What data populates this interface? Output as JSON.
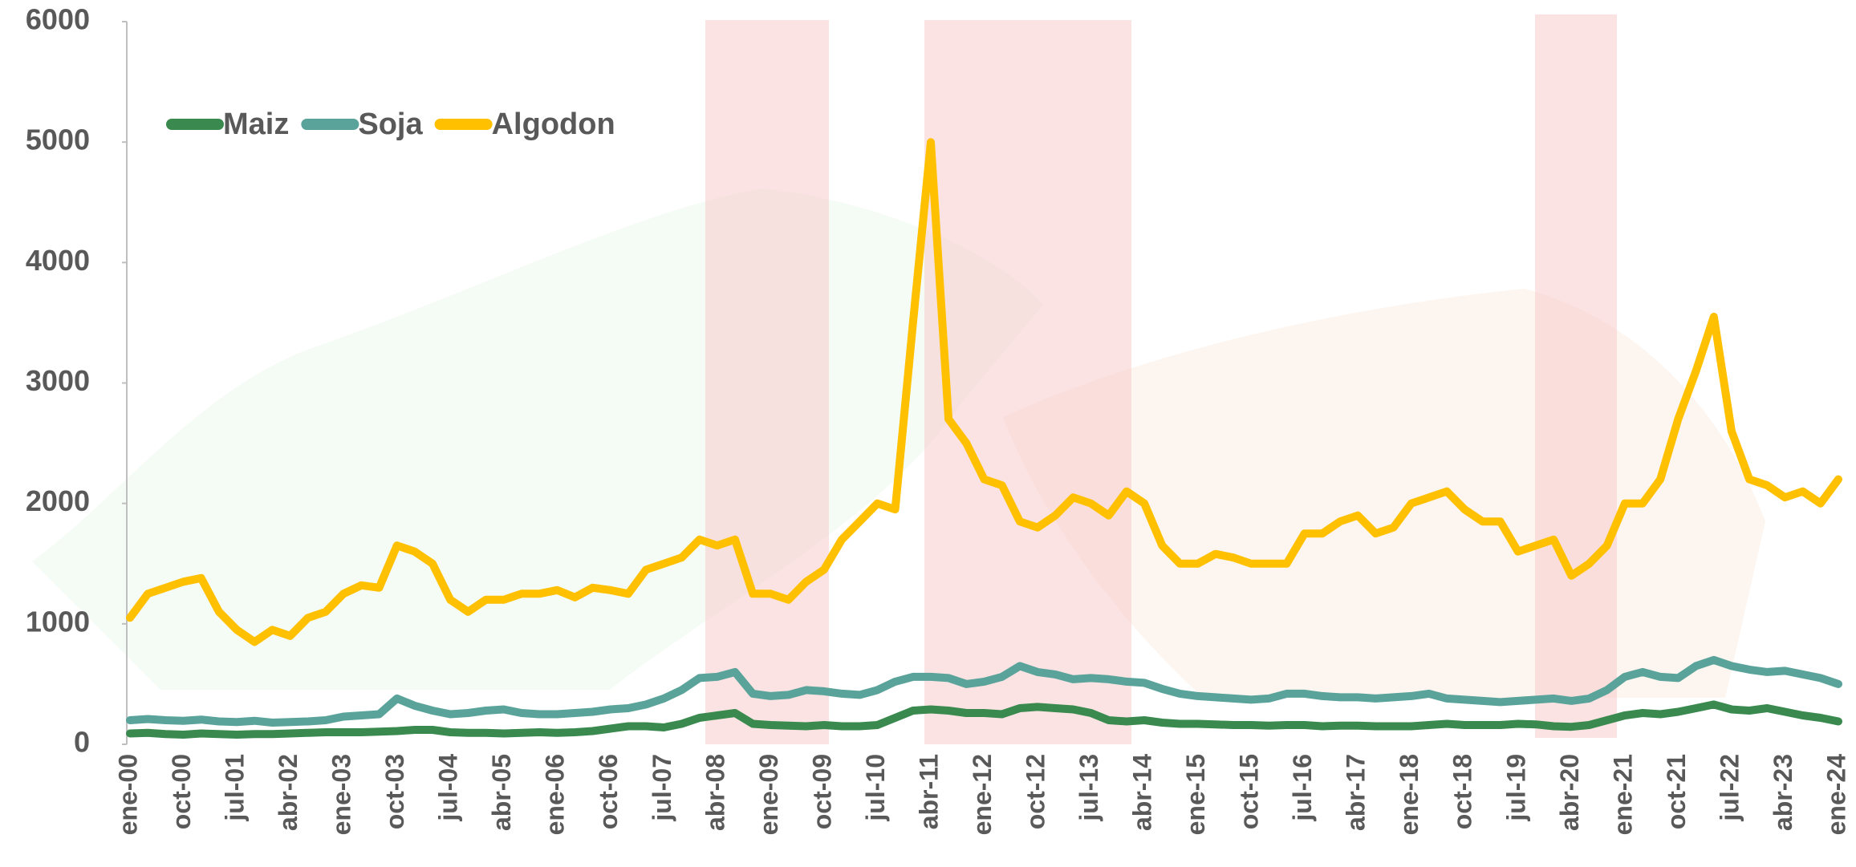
{
  "chart_data": {
    "type": "line",
    "categories": [
      "ene-00",
      null,
      null,
      "oct-00",
      null,
      null,
      "jul-01",
      null,
      null,
      "abr-02",
      null,
      null,
      "ene-03",
      null,
      null,
      "oct-03",
      null,
      null,
      "jul-04",
      null,
      null,
      "abr-05",
      null,
      null,
      "ene-06",
      null,
      null,
      "oct-06",
      null,
      null,
      "jul-07",
      null,
      null,
      "abr-08",
      null,
      null,
      "ene-09",
      null,
      null,
      "oct-09",
      null,
      null,
      "jul-10",
      null,
      null,
      "abr-11",
      null,
      null,
      "ene-12",
      null,
      null,
      "oct-12",
      null,
      null,
      "jul-13",
      null,
      null,
      "abr-14",
      null,
      null,
      "ene-15",
      null,
      null,
      "oct-15",
      null,
      null,
      "jul-16",
      null,
      null,
      "abr-17",
      null,
      null,
      "ene-18",
      null,
      null,
      "oct-18",
      null,
      null,
      "jul-19",
      null,
      null,
      "abr-20",
      null,
      null,
      "ene-21",
      null,
      null,
      "oct-21",
      null,
      null,
      "jul-22",
      null,
      null,
      "abr-23",
      null,
      null,
      "ene-24"
    ],
    "series": [
      {
        "name": "Maiz",
        "color": "#3a8a4f",
        "values": [
          90,
          95,
          85,
          80,
          90,
          85,
          80,
          85,
          85,
          90,
          95,
          100,
          100,
          100,
          105,
          110,
          120,
          120,
          100,
          95,
          95,
          90,
          95,
          100,
          95,
          100,
          110,
          130,
          150,
          150,
          140,
          170,
          220,
          240,
          260,
          170,
          160,
          155,
          150,
          160,
          150,
          150,
          160,
          220,
          280,
          290,
          280,
          260,
          260,
          250,
          300,
          310,
          300,
          290,
          260,
          200,
          190,
          200,
          180,
          170,
          170,
          165,
          160,
          160,
          155,
          160,
          160,
          150,
          155,
          155,
          150,
          150,
          150,
          160,
          170,
          160,
          160,
          160,
          170,
          165,
          150,
          145,
          160,
          200,
          240,
          260,
          250,
          270,
          300,
          330,
          290,
          280,
          300,
          270,
          240,
          220,
          190
        ]
      },
      {
        "name": "Soja",
        "color": "#5aa39a",
        "values": [
          200,
          210,
          200,
          195,
          205,
          190,
          185,
          195,
          180,
          185,
          190,
          200,
          230,
          240,
          250,
          380,
          320,
          280,
          250,
          260,
          280,
          290,
          260,
          250,
          250,
          260,
          270,
          290,
          300,
          330,
          380,
          450,
          550,
          560,
          600,
          420,
          400,
          410,
          450,
          440,
          420,
          410,
          450,
          520,
          560,
          560,
          550,
          500,
          520,
          560,
          650,
          600,
          580,
          540,
          550,
          540,
          520,
          510,
          460,
          420,
          400,
          390,
          380,
          370,
          380,
          420,
          420,
          400,
          390,
          390,
          380,
          390,
          400,
          420,
          380,
          370,
          360,
          350,
          360,
          370,
          380,
          360,
          380,
          450,
          560,
          600,
          560,
          550,
          650,
          700,
          650,
          620,
          600,
          610,
          580,
          550,
          500
        ]
      },
      {
        "name": "Algodon",
        "color": "#ffc000",
        "values": [
          1050,
          1250,
          1300,
          1350,
          1380,
          1100,
          950,
          850,
          950,
          900,
          1050,
          1100,
          1250,
          1320,
          1300,
          1650,
          1600,
          1500,
          1200,
          1100,
          1200,
          1200,
          1250,
          1250,
          1280,
          1220,
          1300,
          1280,
          1250,
          1450,
          1500,
          1550,
          1700,
          1650,
          1700,
          1250,
          1250,
          1200,
          1350,
          1450,
          1700,
          1850,
          2000,
          1950,
          3500,
          5000,
          2700,
          2500,
          2200,
          2150,
          1850,
          1800,
          1900,
          2050,
          2000,
          1900,
          2100,
          2000,
          1650,
          1500,
          1500,
          1580,
          1550,
          1500,
          1500,
          1500,
          1750,
          1750,
          1850,
          1900,
          1750,
          1800,
          2000,
          2050,
          2100,
          1950,
          1850,
          1850,
          1600,
          1650,
          1700,
          1400,
          1500,
          1650,
          2000,
          2000,
          2200,
          2700,
          3100,
          3550,
          2600,
          2200,
          2150,
          2050,
          2100,
          2000,
          2200
        ]
      }
    ],
    "ylim": [
      0,
      6000
    ],
    "yticks": [
      0,
      1000,
      2000,
      3000,
      4000,
      5000,
      6000
    ],
    "grid": false,
    "legend": "top-left"
  }
}
